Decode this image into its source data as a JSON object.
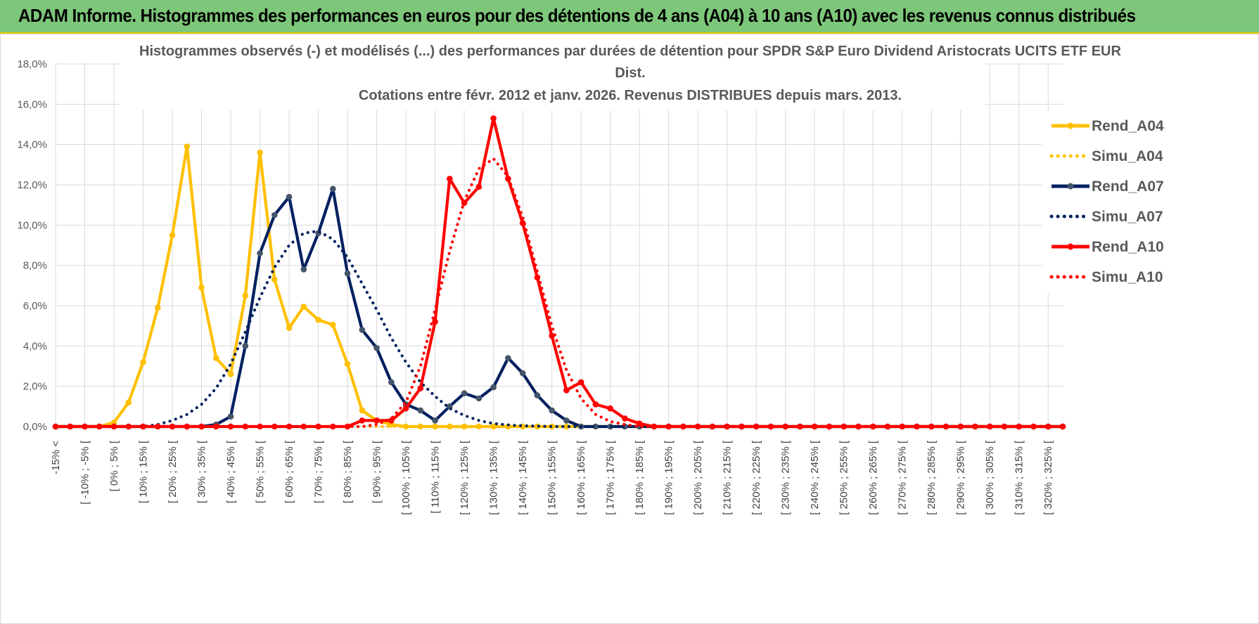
{
  "banner": {
    "title": "ADAM Informe. Histogrammes des performances en euros pour des détentions de 4 ans (A04) à 10 ans (A10) avec les revenus connus distribués"
  },
  "chart_data": {
    "type": "line",
    "title_lines": [
      "Histogrammes observés (-) et modélisés (...) des performances par durées de détention pour SPDR S&P Euro Dividend Aristocrats UCITS ETF EUR",
      "Dist.",
      "Cotations entre févr. 2012 et janv. 2026. Revenus DISTRIBUES depuis mars. 2013."
    ],
    "ylim": [
      0,
      18
    ],
    "yticks": [
      "0,0%",
      "2,0%",
      "4,0%",
      "6,0%",
      "8,0%",
      "10,0%",
      "12,0%",
      "14,0%",
      "16,0%",
      "18,0%"
    ],
    "categories": [
      "-15% <",
      "[ -15% ; -10% [",
      "[ -10% ; -5% [",
      "[ -5% ; 0% [",
      "[ 0% ; 5% [",
      "[ 5% ; 10% [",
      "[ 10% ; 15% [",
      "[ 15% ; 20% [",
      "[ 20% ; 25% [",
      "[ 25% ; 30% [",
      "[ 30% ; 35% [",
      "[ 35% ; 40% [",
      "[ 40% ; 45% [",
      "[ 45% ; 50% [",
      "[ 50% ; 55% [",
      "[ 55% ; 60% [",
      "[ 60% ; 65% [",
      "[ 65% ; 70% [",
      "[ 70% ; 75% [",
      "[ 75% ; 80% [",
      "[ 80% ; 85% [",
      "[ 85% ; 90% [",
      "[ 90% ; 95% [",
      "[ 95% ; 100% [",
      "[ 100% ; 105% [",
      "[ 105% ; 110% [",
      "[ 110% ; 115% [",
      "[ 115% ; 120% [",
      "[ 120% ; 125% [",
      "[ 125% ; 130% [",
      "[ 130% ; 135% [",
      "[ 135% ; 140% [",
      "[ 140% ; 145% [",
      "[ 145% ; 150% [",
      "[ 150% ; 155% [",
      "[ 155% ; 160% [",
      "[ 160% ; 165% [",
      "[ 165% ; 170% [",
      "[ 170% ; 175% [",
      "[ 175% ; 180% [",
      "[ 180% ; 185% [",
      "[ 185% ; 190% [",
      "[ 190% ; 195% [",
      "[ 195% ; 200% [",
      "[ 200% ; 205% [",
      "[ 205% ; 210% [",
      "[ 210% ; 215% [",
      "[ 215% ; 220% [",
      "[ 220% ; 225% [",
      "[ 225% ; 230% [",
      "[ 230% ; 235% [",
      "[ 235% ; 240% [",
      "[ 240% ; 245% [",
      "[ 245% ; 250% [",
      "[ 250% ; 255% [",
      "[ 255% ; 260% [",
      "[ 260% ; 265% [",
      "[ 265% ; 270% [",
      "[ 270% ; 275% [",
      "[ 275% ; 280% [",
      "[ 280% ; 285% [",
      "[ 285% ; 290% [",
      "[ 290% ; 295% [",
      "[ 295% ; 300% [",
      "[ 300% ; 305% [",
      "[ 305% ; 310% [",
      "[ 310% ; 315% [",
      "[ 315% ; 320% [",
      "[ 320% ; 325% [",
      "[ 325% ; 330% ["
    ],
    "series": [
      {
        "name": "Rend_A04",
        "color": "#ffc000",
        "style": "solid",
        "markers": true,
        "values": [
          0,
          0,
          0,
          0,
          0.2,
          1.2,
          3.2,
          5.9,
          9.5,
          13.9,
          6.9,
          3.4,
          2.6,
          6.5,
          13.6,
          7.3,
          4.9,
          5.95,
          5.3,
          5.05,
          3.1,
          0.8,
          0.3,
          0.1,
          0,
          0,
          0,
          0,
          0,
          0,
          0,
          0,
          0,
          0,
          0,
          0,
          0,
          0,
          0,
          0,
          0,
          0,
          0,
          0,
          0,
          0,
          0,
          0,
          0,
          0,
          0,
          0,
          0,
          0,
          0,
          0,
          0,
          0,
          0,
          0,
          0,
          0,
          0,
          0,
          0,
          0,
          0,
          0,
          0,
          0
        ]
      },
      {
        "name": "Simu_A04",
        "color": "#ffc000",
        "style": "dotted",
        "markers": false,
        "values": [
          0,
          0,
          0,
          0,
          0,
          0,
          0,
          0,
          0,
          0,
          0,
          0,
          0,
          0,
          0,
          0,
          0,
          0,
          0,
          0,
          0,
          0,
          0,
          0,
          0,
          0,
          0,
          0,
          0,
          0,
          0,
          0,
          0,
          0,
          0,
          0,
          0,
          0,
          0,
          0,
          0,
          0,
          0,
          0,
          0,
          0,
          0,
          0,
          0,
          0,
          0,
          0,
          0,
          0,
          0,
          0,
          0,
          0,
          0,
          0,
          0,
          0,
          0,
          0,
          0,
          0,
          0,
          0,
          0,
          0
        ]
      },
      {
        "name": "Rend_A07",
        "color": "#002060",
        "style": "solid",
        "markers": true,
        "values": [
          0,
          0,
          0,
          0,
          0,
          0,
          0,
          0,
          0,
          0,
          0,
          0.1,
          0.5,
          4,
          8.6,
          10.5,
          11.4,
          7.8,
          9.6,
          11.8,
          7.6,
          4.8,
          3.9,
          2.2,
          1.1,
          0.8,
          0.3,
          1,
          1.65,
          1.4,
          1.95,
          3.4,
          2.65,
          1.55,
          0.8,
          0.3,
          0,
          0,
          0,
          0,
          0,
          0,
          0,
          0,
          0,
          0,
          0,
          0,
          0,
          0,
          0,
          0,
          0,
          0,
          0,
          0,
          0,
          0,
          0,
          0,
          0,
          0,
          0,
          0,
          0,
          0,
          0,
          0,
          0,
          0
        ]
      },
      {
        "name": "Simu_A07",
        "color": "#002060",
        "style": "dotted",
        "markers": false,
        "values": [
          0,
          0,
          0,
          0,
          0,
          0,
          0,
          0.1,
          0.3,
          0.6,
          1.1,
          1.9,
          3.1,
          4.7,
          6.4,
          7.9,
          9,
          9.6,
          9.7,
          9.3,
          8.4,
          7.1,
          5.8,
          4.4,
          3.2,
          2.2,
          1.5,
          0.9,
          0.55,
          0.3,
          0.15,
          0.08,
          0.04,
          0.02,
          0,
          0,
          0,
          0,
          0,
          0,
          0,
          0,
          0,
          0,
          0,
          0,
          0,
          0,
          0,
          0,
          0,
          0,
          0,
          0,
          0,
          0,
          0,
          0,
          0,
          0,
          0,
          0,
          0,
          0,
          0,
          0,
          0,
          0,
          0,
          0
        ]
      },
      {
        "name": "Rend_A10",
        "color": "#ff0000",
        "style": "solid",
        "markers": true,
        "values": [
          0,
          0,
          0,
          0,
          0,
          0,
          0,
          0,
          0,
          0,
          0,
          0,
          0,
          0,
          0,
          0,
          0,
          0,
          0,
          0,
          0,
          0.3,
          0.3,
          0.3,
          0.9,
          1.9,
          5.2,
          12.3,
          11.1,
          11.9,
          15.3,
          12.3,
          10.1,
          7.4,
          4.5,
          1.8,
          2.2,
          1.1,
          0.9,
          0.4,
          0.15,
          0,
          0,
          0,
          0,
          0,
          0,
          0,
          0,
          0,
          0,
          0,
          0,
          0,
          0,
          0,
          0,
          0,
          0,
          0,
          0,
          0,
          0,
          0,
          0,
          0,
          0,
          0,
          0,
          0
        ]
      },
      {
        "name": "Simu_A10",
        "color": "#ff0000",
        "style": "dotted",
        "markers": false,
        "values": [
          0,
          0,
          0,
          0,
          0,
          0,
          0,
          0,
          0,
          0,
          0,
          0,
          0,
          0,
          0,
          0,
          0,
          0,
          0,
          0,
          0,
          0,
          0.1,
          0.4,
          1.2,
          3,
          5.8,
          8.7,
          11.2,
          12.8,
          13.3,
          12.4,
          10.4,
          7.7,
          5,
          2.8,
          1.4,
          0.6,
          0.25,
          0.1,
          0,
          0,
          0,
          0,
          0,
          0,
          0,
          0,
          0,
          0,
          0,
          0,
          0,
          0,
          0,
          0,
          0,
          0,
          0,
          0,
          0,
          0,
          0,
          0,
          0,
          0,
          0,
          0,
          0,
          0
        ]
      }
    ],
    "legend_position": "right"
  }
}
